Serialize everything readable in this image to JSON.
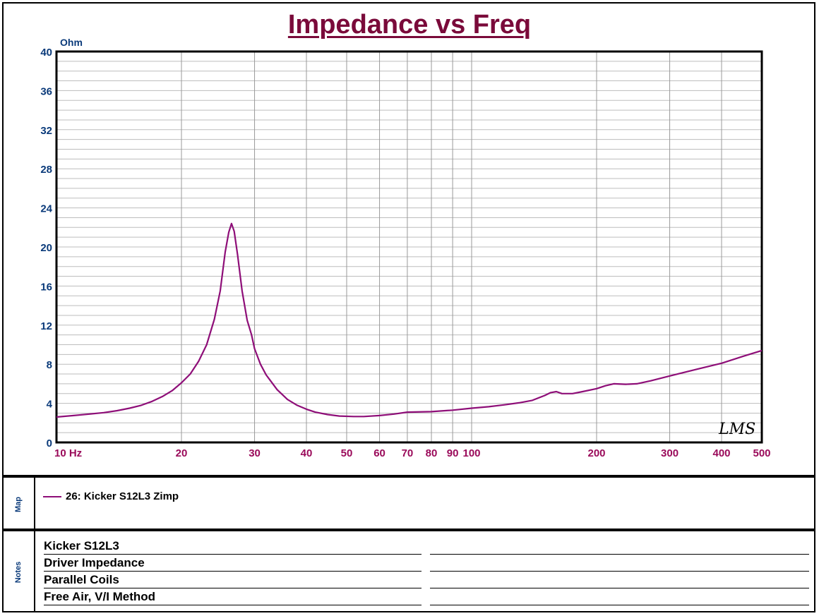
{
  "title": "Impedance vs Freq",
  "y_unit": "Ohm",
  "logo": "LMS",
  "colors": {
    "title": "#7a0a3a",
    "curve": "#8e0e78",
    "ytick": "#0a3a7a",
    "xtick": "#9a0a5a"
  },
  "chart_data": {
    "type": "line",
    "title": "Impedance vs Freq",
    "xlabel": "Hz",
    "ylabel": "Ohm",
    "x_scale": "log",
    "xlim": [
      10,
      500
    ],
    "ylim": [
      0,
      40
    ],
    "grid": true,
    "y_ticks": [
      "0",
      "4",
      "8",
      "12",
      "16",
      "20",
      "24",
      "28",
      "32",
      "36",
      "40"
    ],
    "x_ticks": [
      "10 Hz",
      "20",
      "30",
      "40",
      "50",
      "60",
      "70",
      "80",
      "90",
      "100",
      "200",
      "300",
      "400",
      "500"
    ],
    "series": [
      {
        "name": "26: Kicker S12L3 Zimp",
        "points": [
          [
            10,
            2.6
          ],
          [
            11,
            2.75
          ],
          [
            12,
            2.9
          ],
          [
            13,
            3.05
          ],
          [
            14,
            3.25
          ],
          [
            15,
            3.5
          ],
          [
            16,
            3.8
          ],
          [
            17,
            4.2
          ],
          [
            18,
            4.7
          ],
          [
            19,
            5.3
          ],
          [
            20,
            6.1
          ],
          [
            21,
            7.0
          ],
          [
            22,
            8.3
          ],
          [
            23,
            10.0
          ],
          [
            24,
            12.6
          ],
          [
            24.8,
            15.5
          ],
          [
            25.5,
            19.5
          ],
          [
            26,
            21.5
          ],
          [
            26.4,
            22.4
          ],
          [
            26.8,
            21.6
          ],
          [
            27.3,
            19.2
          ],
          [
            28,
            15.5
          ],
          [
            28.8,
            12.5
          ],
          [
            29.5,
            11.0
          ],
          [
            30,
            9.6
          ],
          [
            31,
            8.0
          ],
          [
            32,
            6.9
          ],
          [
            34,
            5.4
          ],
          [
            36,
            4.4
          ],
          [
            38,
            3.8
          ],
          [
            40,
            3.4
          ],
          [
            42,
            3.1
          ],
          [
            45,
            2.85
          ],
          [
            48,
            2.7
          ],
          [
            52,
            2.65
          ],
          [
            55,
            2.65
          ],
          [
            60,
            2.75
          ],
          [
            65,
            2.9
          ],
          [
            70,
            3.1
          ],
          [
            80,
            3.15
          ],
          [
            90,
            3.3
          ],
          [
            100,
            3.5
          ],
          [
            110,
            3.65
          ],
          [
            120,
            3.85
          ],
          [
            130,
            4.05
          ],
          [
            140,
            4.3
          ],
          [
            150,
            4.8
          ],
          [
            155,
            5.1
          ],
          [
            160,
            5.2
          ],
          [
            165,
            5.0
          ],
          [
            175,
            5.0
          ],
          [
            185,
            5.2
          ],
          [
            200,
            5.5
          ],
          [
            210,
            5.8
          ],
          [
            220,
            6.0
          ],
          [
            235,
            5.95
          ],
          [
            250,
            6.0
          ],
          [
            270,
            6.3
          ],
          [
            300,
            6.8
          ],
          [
            350,
            7.5
          ],
          [
            400,
            8.1
          ],
          [
            450,
            8.8
          ],
          [
            500,
            9.4
          ]
        ]
      }
    ]
  },
  "map": {
    "label": "Map",
    "entry": "26: Kicker S12L3 Zimp"
  },
  "notes": {
    "label": "Notes",
    "lines": [
      "Kicker S12L3",
      "Driver Impedance",
      "Parallel Coils",
      "Free Air, V/I Method"
    ]
  }
}
